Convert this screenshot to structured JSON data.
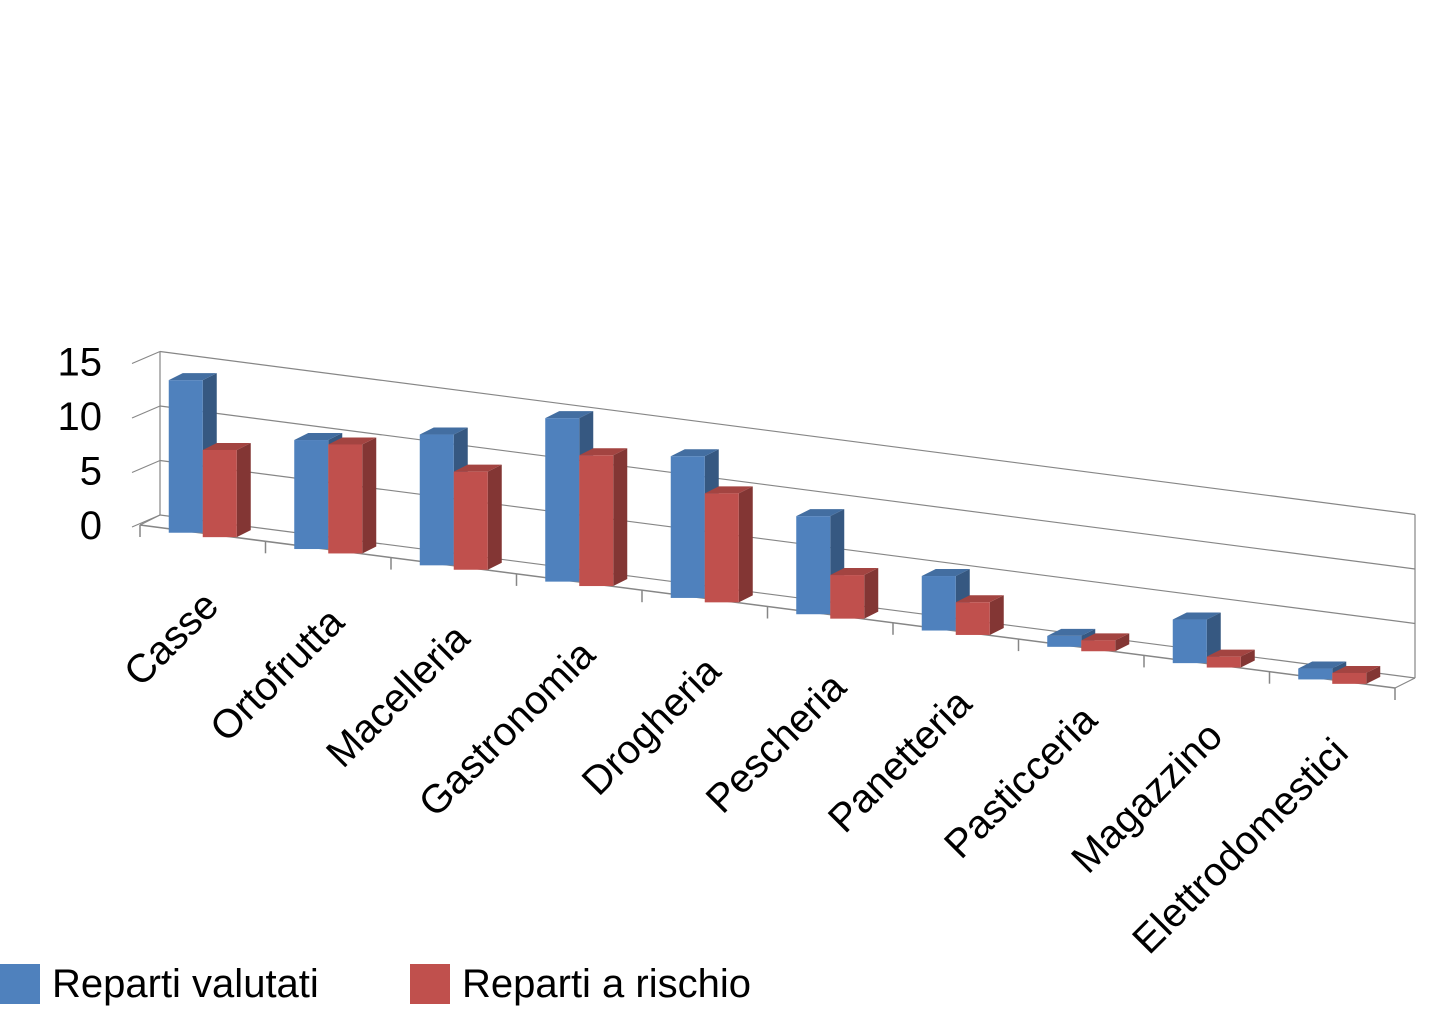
{
  "chart_data": {
    "type": "bar",
    "variant": "3d-clustered-column",
    "title": "",
    "xlabel": "",
    "ylabel": "",
    "ylim": [
      0,
      15
    ],
    "yticks": [
      0,
      5,
      10,
      15
    ],
    "grid": true,
    "legend_position": "bottom-left",
    "categories": [
      "Casse",
      "Ortofrutta",
      "Macelleria",
      "Gastronomia",
      "Drogheria",
      "Pescheria",
      "Panetteria",
      "Pasticceria",
      "Magazzino",
      "Elettrodomestici"
    ],
    "series": [
      {
        "name": "Reparti valutati",
        "color": "#4F81BD",
        "values": [
          14,
          10,
          12,
          15,
          13,
          9,
          5,
          1,
          4,
          1
        ]
      },
      {
        "name": "Reparti a rischio",
        "color": "#C0504D",
        "values": [
          8,
          10,
          9,
          12,
          10,
          4,
          3,
          1,
          1,
          1
        ]
      }
    ]
  }
}
